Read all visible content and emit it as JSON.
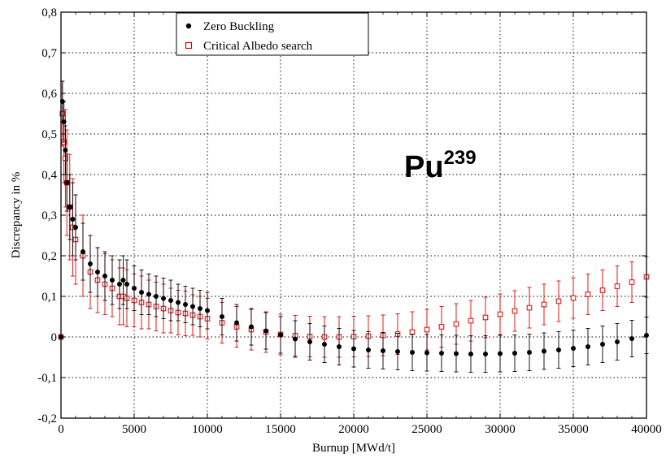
{
  "chart_data": {
    "type": "scatter",
    "title": "",
    "xlabel": "Burnup [MWd/t]",
    "ylabel": "Discrepancy in %",
    "xlim": [
      0,
      40000
    ],
    "ylim": [
      -0.2,
      0.8
    ],
    "x_ticks": [
      0,
      5000,
      10000,
      15000,
      20000,
      25000,
      30000,
      35000,
      40000
    ],
    "x_tick_labels": [
      "0",
      "5000",
      "10000",
      "15000",
      "20000",
      "25000",
      "30000",
      "35000",
      "40000"
    ],
    "y_ticks": [
      -0.2,
      -0.1,
      0,
      0.1,
      0.2,
      0.3,
      0.4,
      0.5,
      0.6,
      0.7,
      0.8
    ],
    "y_tick_labels": [
      "-0,2",
      "-0,1",
      "0",
      "0,1",
      "0,2",
      "0,3",
      "0,4",
      "0,5",
      "0,6",
      "0,7",
      "0,8"
    ],
    "grid": true,
    "legend_position": "top-left",
    "annotation": {
      "base": "Pu",
      "superscript": "239"
    },
    "series": [
      {
        "name": "Zero Buckling",
        "color": "#000000",
        "marker": "filled-circle",
        "x": [
          0,
          100,
          200,
          300,
          400,
          600,
          800,
          1000,
          1500,
          2000,
          2500,
          3000,
          3500,
          4000,
          4250,
          4500,
          5000,
          5500,
          6000,
          6500,
          7000,
          7500,
          8000,
          8500,
          9000,
          9500,
          10000,
          11000,
          12000,
          13000,
          14000,
          15000,
          16000,
          17000,
          18000,
          19000,
          20000,
          21000,
          22000,
          23000,
          24000,
          25000,
          26000,
          27000,
          28000,
          29000,
          30000,
          31000,
          32000,
          33000,
          34000,
          35000,
          36000,
          37000,
          38000,
          39000,
          40000
        ],
        "y": [
          0.0,
          0.58,
          0.53,
          0.46,
          0.38,
          0.32,
          0.29,
          0.27,
          0.21,
          0.18,
          0.16,
          0.15,
          0.14,
          0.13,
          0.14,
          0.13,
          0.12,
          0.11,
          0.105,
          0.1,
          0.095,
          0.09,
          0.085,
          0.08,
          0.075,
          0.07,
          0.065,
          0.05,
          0.035,
          0.025,
          0.015,
          0.005,
          -0.005,
          -0.012,
          -0.018,
          -0.024,
          -0.029,
          -0.032,
          -0.034,
          -0.036,
          -0.038,
          -0.039,
          -0.04,
          -0.041,
          -0.042,
          -0.042,
          -0.041,
          -0.04,
          -0.038,
          -0.035,
          -0.032,
          -0.028,
          -0.024,
          -0.018,
          -0.012,
          -0.004,
          0.004
        ],
        "err": [
          0.0,
          0.05,
          0.05,
          0.06,
          0.07,
          0.08,
          0.09,
          0.08,
          0.07,
          0.07,
          0.06,
          0.06,
          0.06,
          0.06,
          0.06,
          0.06,
          0.055,
          0.055,
          0.05,
          0.05,
          0.05,
          0.05,
          0.045,
          0.045,
          0.045,
          0.045,
          0.045,
          0.045,
          0.045,
          0.045,
          0.045,
          0.045,
          0.045,
          0.045,
          0.045,
          0.045,
          0.045,
          0.045,
          0.045,
          0.045,
          0.045,
          0.045,
          0.045,
          0.045,
          0.045,
          0.045,
          0.045,
          0.045,
          0.045,
          0.045,
          0.045,
          0.045,
          0.045,
          0.045,
          0.045,
          0.045,
          0.045
        ]
      },
      {
        "name": "Critical Albedo search",
        "color": "#e00000",
        "marker": "open-square",
        "x": [
          0,
          100,
          200,
          300,
          400,
          600,
          800,
          1000,
          1500,
          2000,
          2500,
          3000,
          3500,
          4000,
          4250,
          4500,
          5000,
          5500,
          6000,
          6500,
          7000,
          7500,
          8000,
          8500,
          9000,
          9500,
          10000,
          11000,
          12000,
          13000,
          14000,
          15000,
          16000,
          17000,
          18000,
          19000,
          20000,
          21000,
          22000,
          23000,
          24000,
          25000,
          26000,
          27000,
          28000,
          29000,
          30000,
          31000,
          32000,
          33000,
          34000,
          35000,
          36000,
          37000,
          38000,
          39000,
          40000
        ],
        "y": [
          0.0,
          0.55,
          0.48,
          0.44,
          0.38,
          0.32,
          0.27,
          0.24,
          0.2,
          0.16,
          0.14,
          0.13,
          0.12,
          0.1,
          0.1,
          0.095,
          0.09,
          0.085,
          0.08,
          0.075,
          0.07,
          0.065,
          0.06,
          0.058,
          0.054,
          0.05,
          0.045,
          0.035,
          0.025,
          0.018,
          0.012,
          0.006,
          0.003,
          0.001,
          0.0,
          0.0,
          0.001,
          0.002,
          0.004,
          0.007,
          0.012,
          0.018,
          0.025,
          0.032,
          0.04,
          0.048,
          0.056,
          0.064,
          0.072,
          0.08,
          0.088,
          0.096,
          0.105,
          0.115,
          0.125,
          0.135,
          0.148
        ],
        "err": [
          0.0,
          0.08,
          0.1,
          0.12,
          0.13,
          0.13,
          0.12,
          0.11,
          0.1,
          0.09,
          0.08,
          0.075,
          0.07,
          0.07,
          0.07,
          0.07,
          0.065,
          0.065,
          0.06,
          0.06,
          0.06,
          0.055,
          0.055,
          0.055,
          0.05,
          0.05,
          0.05,
          0.05,
          0.05,
          0.05,
          0.05,
          0.05,
          0.05,
          0.05,
          0.05,
          0.05,
          0.05,
          0.05,
          0.05,
          0.05,
          0.05,
          0.05,
          0.05,
          0.05,
          0.05,
          0.05,
          0.05,
          0.05,
          0.05,
          0.05,
          0.05,
          0.05,
          0.05,
          0.05,
          0.05,
          0.05,
          0.05
        ]
      }
    ]
  }
}
